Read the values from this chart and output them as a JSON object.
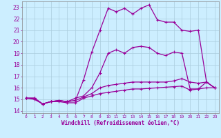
{
  "xlabel": "Windchill (Refroidissement éolien,°C)",
  "background_color": "#cceeff",
  "grid_color": "#aaccdd",
  "line_color": "#990099",
  "x_values": [
    0,
    1,
    2,
    3,
    4,
    5,
    6,
    7,
    8,
    9,
    10,
    11,
    12,
    13,
    14,
    15,
    16,
    17,
    18,
    19,
    20,
    21,
    22,
    23
  ],
  "series": [
    [
      15.1,
      15.1,
      14.6,
      14.8,
      14.8,
      14.7,
      14.7,
      15.1,
      15.3,
      15.5,
      15.6,
      15.7,
      15.8,
      15.9,
      15.9,
      15.95,
      16.0,
      16.05,
      16.1,
      16.15,
      15.8,
      15.9,
      16.0,
      16.0
    ],
    [
      15.1,
      15.0,
      14.6,
      14.8,
      14.9,
      14.8,
      14.9,
      15.2,
      15.5,
      16.0,
      16.2,
      16.3,
      16.4,
      16.5,
      16.5,
      16.5,
      16.5,
      16.5,
      16.6,
      16.8,
      16.5,
      16.4,
      16.5,
      16.0
    ],
    [
      15.1,
      15.1,
      14.6,
      14.8,
      14.9,
      14.8,
      15.1,
      15.3,
      16.0,
      17.3,
      19.0,
      19.3,
      19.0,
      19.5,
      19.6,
      19.5,
      19.0,
      18.8,
      19.1,
      19.0,
      15.9,
      15.9,
      16.5,
      16.0
    ],
    [
      15.1,
      15.1,
      14.6,
      14.8,
      14.9,
      14.8,
      14.9,
      16.7,
      19.1,
      21.0,
      22.9,
      22.6,
      22.9,
      22.4,
      22.9,
      23.2,
      21.9,
      21.7,
      21.7,
      21.0,
      20.9,
      21.0,
      16.5,
      16.0
    ]
  ],
  "ylim": [
    13.8,
    23.5
  ],
  "xlim": [
    -0.5,
    23.5
  ],
  "yticks": [
    14,
    15,
    16,
    17,
    18,
    19,
    20,
    21,
    22,
    23
  ],
  "xticks": [
    0,
    1,
    2,
    3,
    4,
    5,
    6,
    7,
    8,
    9,
    10,
    11,
    12,
    13,
    14,
    15,
    16,
    17,
    18,
    19,
    20,
    21,
    22,
    23
  ],
  "markersize": 3,
  "linewidth": 0.9
}
